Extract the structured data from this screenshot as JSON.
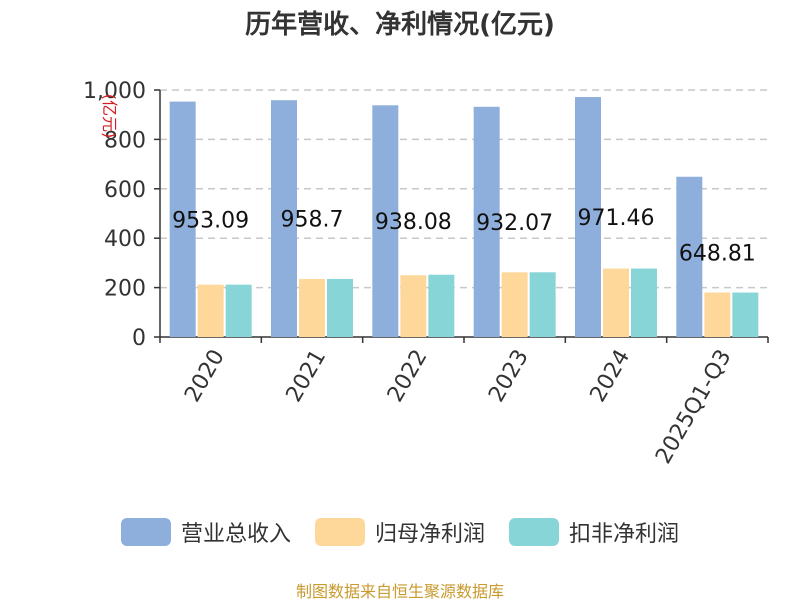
{
  "title": "历年营收、净利情况(亿元)",
  "source": "制图数据来自恒生聚源数据库",
  "chart_data": {
    "type": "bar",
    "ylabel": "(亿元)",
    "ylim": [
      0,
      1000
    ],
    "yticks": [
      "0",
      "200",
      "400",
      "600",
      "800",
      "1,000"
    ],
    "grid": true,
    "legend_position": "bottom",
    "categories": [
      "2020",
      "2021",
      "2022",
      "2023",
      "2024",
      "2025Q1-Q3"
    ],
    "series": [
      {
        "name": "营业总收入",
        "color": "#8eaedb",
        "values": [
          953.09,
          958.7,
          938.08,
          932.07,
          971.46,
          648.81
        ],
        "labels": [
          "953.09",
          "958.7",
          "938.08",
          "932.07",
          "971.46",
          "648.81"
        ]
      },
      {
        "name": "归母净利润",
        "color": "#fdd89a",
        "values": [
          212,
          235,
          250,
          262,
          277,
          180
        ]
      },
      {
        "name": "扣非净利润",
        "color": "#88d5d8",
        "values": [
          212,
          235,
          252,
          262,
          277,
          180
        ]
      }
    ]
  }
}
